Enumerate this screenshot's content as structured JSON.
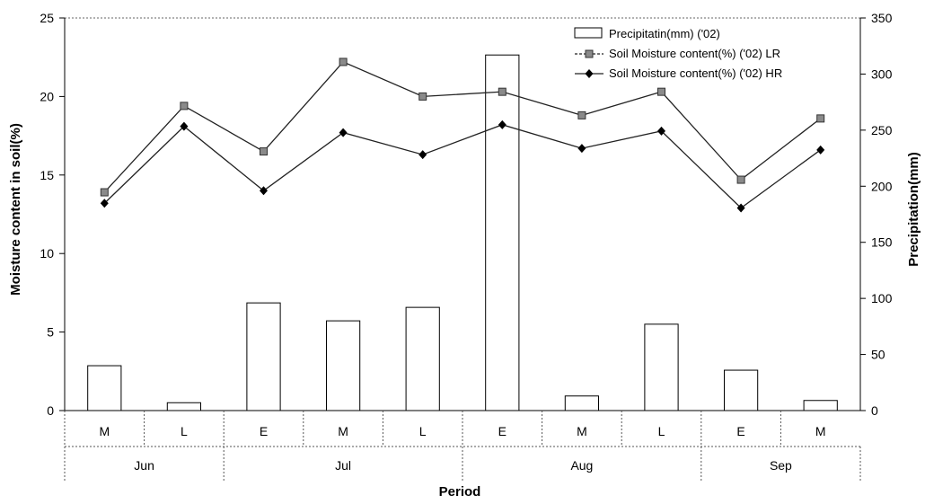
{
  "chart_data": {
    "type": "bar",
    "title": "",
    "xlabel": "Period",
    "ylabel": "Moisture content in soil(%)",
    "y2label": "Precipitation(mm)",
    "ylim": [
      0,
      25
    ],
    "y2lim": [
      0,
      350
    ],
    "yticks": [
      "0",
      "5",
      "10",
      "15",
      "20",
      "25"
    ],
    "y2ticks": [
      "0",
      "50",
      "100",
      "150",
      "200",
      "250",
      "300",
      "350"
    ],
    "categories": [
      "M",
      "L",
      "E",
      "M",
      "L",
      "E",
      "M",
      "L",
      "E",
      "M"
    ],
    "month_groups": [
      {
        "label": "Jun",
        "span": 2
      },
      {
        "label": "Jul",
        "span": 3
      },
      {
        "label": "Aug",
        "span": 3
      },
      {
        "label": "Sep",
        "span": 2
      }
    ],
    "legend_position": "top-right",
    "grid": false,
    "series": [
      {
        "name": "Precipitatin(mm) ('02)",
        "kind": "bar",
        "axis": "right",
        "color": "#ffffff",
        "values": [
          40,
          7,
          96,
          80,
          92,
          317,
          13,
          77,
          36,
          9
        ]
      },
      {
        "name": "Soil Moisture content(%) ('02) LR",
        "kind": "line",
        "axis": "left",
        "marker": "square",
        "color": "#555555",
        "values": [
          13.9,
          19.4,
          16.5,
          22.2,
          20.0,
          20.3,
          18.8,
          20.3,
          14.7,
          18.6
        ]
      },
      {
        "name": "Soil Moisture content(%) ('02) HR",
        "kind": "line",
        "axis": "left",
        "marker": "diamond",
        "color": "#000000",
        "values": [
          13.2,
          18.1,
          14.0,
          17.7,
          16.3,
          18.2,
          16.7,
          17.8,
          12.9,
          16.6
        ]
      }
    ]
  }
}
